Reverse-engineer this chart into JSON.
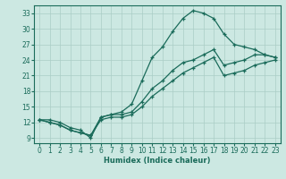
{
  "xlabel": "Humidex (Indice chaleur)",
  "bg_color": "#cce8e2",
  "grid_color": "#aacdc6",
  "line_color": "#1a6b5a",
  "xlim": [
    -0.5,
    23.5
  ],
  "ylim": [
    8.0,
    34.5
  ],
  "yticks": [
    9,
    12,
    15,
    18,
    21,
    24,
    27,
    30,
    33
  ],
  "xticks": [
    0,
    1,
    2,
    3,
    4,
    5,
    6,
    7,
    8,
    9,
    10,
    11,
    12,
    13,
    14,
    15,
    16,
    17,
    18,
    19,
    20,
    21,
    22,
    23
  ],
  "curve1_x": [
    0,
    1,
    2,
    3,
    4,
    5,
    6,
    7,
    8,
    9,
    10,
    11,
    12,
    13,
    14,
    15,
    16,
    17,
    18,
    19,
    20,
    21,
    22,
    23
  ],
  "curve1_y": [
    12.5,
    12.5,
    12.0,
    11.0,
    10.5,
    9.0,
    13.0,
    13.5,
    14.0,
    15.5,
    20.0,
    24.5,
    26.5,
    29.5,
    32.0,
    33.5,
    33.0,
    32.0,
    29.0,
    27.0,
    26.5,
    26.0,
    25.0,
    24.5
  ],
  "curve2_x": [
    0,
    1,
    2,
    3,
    4,
    5,
    6,
    7,
    8,
    9,
    10,
    11,
    12,
    13,
    14,
    15,
    16,
    17,
    18,
    19,
    20,
    21,
    22,
    23
  ],
  "curve2_y": [
    12.5,
    12.0,
    11.5,
    10.5,
    10.0,
    9.5,
    13.0,
    13.5,
    13.5,
    14.0,
    16.0,
    18.5,
    20.0,
    22.0,
    23.5,
    24.0,
    25.0,
    26.0,
    23.0,
    23.5,
    24.0,
    25.0,
    25.0,
    24.5
  ],
  "curve3_x": [
    0,
    1,
    2,
    3,
    4,
    5,
    6,
    7,
    8,
    9,
    10,
    11,
    12,
    13,
    14,
    15,
    16,
    17,
    18,
    19,
    20,
    21,
    22,
    23
  ],
  "curve3_y": [
    12.5,
    12.0,
    11.5,
    10.5,
    10.0,
    9.5,
    12.5,
    13.0,
    13.0,
    13.5,
    15.0,
    17.0,
    18.5,
    20.0,
    21.5,
    22.5,
    23.5,
    24.5,
    21.0,
    21.5,
    22.0,
    23.0,
    23.5,
    24.0
  ]
}
